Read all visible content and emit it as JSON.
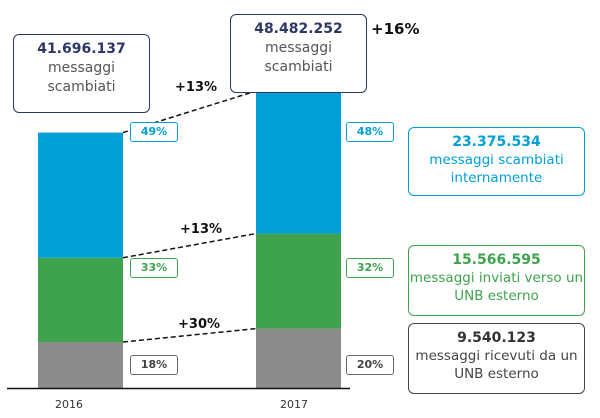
{
  "chart_data": {
    "type": "bar",
    "stacked": true,
    "categories": [
      "2016",
      "2017"
    ],
    "totals": [
      41696137,
      48482252
    ],
    "total_label": "messaggi scambiati",
    "total_growth": "+16%",
    "series": [
      {
        "name": "messaggi scambiati internamente",
        "color": "#00a0d6",
        "percent": [
          49,
          48
        ],
        "value_2017": "23.375.534",
        "growth": "+13%"
      },
      {
        "name": "messaggi inviati verso un UNB esterno",
        "color": "#3fa34d",
        "percent": [
          33,
          32
        ],
        "value_2017": "15.566.595",
        "growth": "+13%"
      },
      {
        "name": "messaggi ricevuti da un UNB esterno",
        "color": "#8c8c8c",
        "percent": [
          18,
          20
        ],
        "value_2017": "9.540.123",
        "growth": "+30%"
      }
    ],
    "total_labels": [
      "41.696.137",
      "48.482.252"
    ],
    "percent_labels": [
      [
        "49%",
        "33%",
        "18%"
      ],
      [
        "48%",
        "32%",
        "20%"
      ]
    ],
    "legend_placement": "right",
    "grid": false
  }
}
